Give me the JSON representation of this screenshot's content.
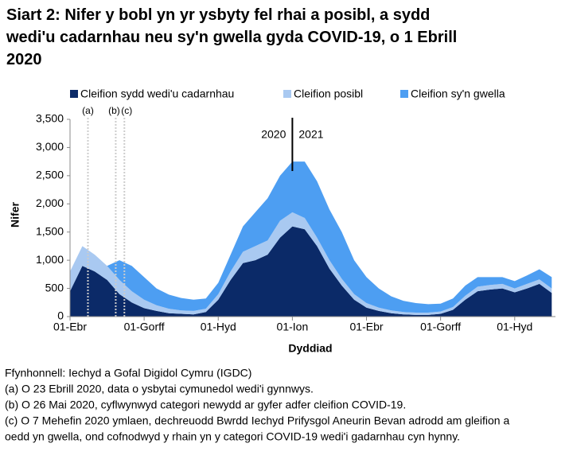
{
  "chart_data": {
    "type": "stacked-area",
    "title": "Siart 2: Nifer y bobl yn yr ysbyty fel rhai a posibl, a sydd wedi'u cadarnhau neu sy'n gwella gyda COVID-19, o 1 Ebrill 2020",
    "x_label": "Dyddiad",
    "y_label": "Nifer",
    "categories": [
      "01-Ebr",
      null,
      null,
      null,
      null,
      null,
      "01-Gorff",
      null,
      null,
      null,
      null,
      null,
      "01-Hyd",
      null,
      null,
      null,
      null,
      null,
      "01-Ion",
      null,
      null,
      null,
      null,
      null,
      "01-Ebr",
      null,
      null,
      null,
      null,
      null,
      "01-Gorff",
      null,
      null,
      null,
      null,
      null,
      "01-Hyd",
      null,
      null,
      null
    ],
    "series": [
      {
        "name": "Cleifion sydd wedi'u cadarnhau",
        "color": "#0b2a68",
        "values": [
          450,
          900,
          800,
          650,
          400,
          250,
          150,
          100,
          60,
          50,
          40,
          80,
          300,
          650,
          950,
          1000,
          1100,
          1400,
          1600,
          1550,
          1250,
          850,
          550,
          300,
          160,
          100,
          60,
          40,
          30,
          30,
          50,
          120,
          300,
          450,
          480,
          500,
          430,
          500,
          580,
          420
        ]
      },
      {
        "name": "Cleifion posibl",
        "color": "#a9c9f1",
        "values": [
          350,
          350,
          300,
          250,
          250,
          200,
          150,
          100,
          80,
          60,
          60,
          60,
          100,
          150,
          200,
          250,
          250,
          300,
          250,
          200,
          150,
          150,
          120,
          100,
          80,
          60,
          50,
          40,
          40,
          40,
          40,
          50,
          70,
          80,
          80,
          80,
          70,
          80,
          80,
          80
        ]
      },
      {
        "name": "Cleifion sy'n gwella",
        "color": "#4d9ef2",
        "values": [
          0,
          0,
          0,
          0,
          350,
          450,
          400,
          300,
          250,
          220,
          200,
          180,
          200,
          300,
          450,
          600,
          750,
          800,
          900,
          1000,
          1000,
          900,
          830,
          600,
          460,
          340,
          250,
          200,
          170,
          150,
          140,
          150,
          180,
          170,
          140,
          120,
          130,
          150,
          180,
          200
        ]
      }
    ],
    "ylim": [
      0,
      3500
    ],
    "yticks": [
      0,
      500,
      {
        "value": 1000,
        "label": "1,000"
      },
      {
        "value": 1500,
        "label": "1,500"
      },
      {
        "value": 2000,
        "label": "2,000"
      },
      {
        "value": 2500,
        "label": "2,500"
      },
      {
        "value": 3000,
        "label": "3,000"
      },
      {
        "value": 3500,
        "label": "3,500"
      }
    ],
    "markers": [
      "(a)",
      "(b)",
      "(c)"
    ],
    "year_labels": [
      "2020",
      "2021"
    ],
    "notes": [
      "Ffynhonnell: Iechyd a Gofal Digidol Cymru (IGDC)",
      "(a) O 23 Ebrill 2020, data o ysbytai cymunedol wedi'i gynnwys.",
      "(b) O 26 Mai 2020, cyflwynwyd categori newydd ar gyfer adfer cleifion COVID-19.",
      "(c) O 7 Mehefin 2020 ymlaen, dechreuodd Bwrdd Iechyd Prifysgol Aneurin Bevan adrodd am gleifion a",
      "oedd yn gwella, ond cofnodwyd y rhain yn y categori COVID-19 wedi'i gadarnhau cyn hynny."
    ]
  }
}
